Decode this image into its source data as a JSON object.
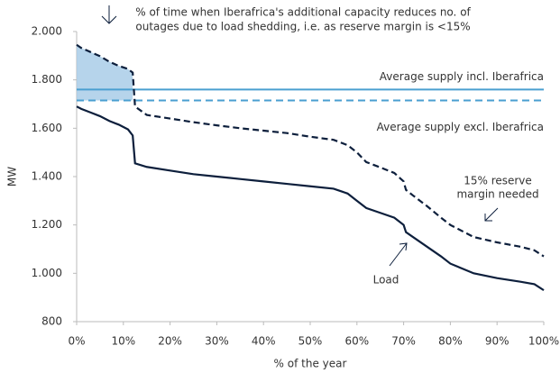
{
  "chart_data": {
    "type": "line",
    "x_label": "% of the year",
    "y_label": "MW",
    "x": [
      0,
      1,
      3,
      5,
      7,
      9,
      11,
      12,
      12.5,
      15,
      20,
      25,
      30,
      35,
      40,
      45,
      50,
      55,
      58,
      60,
      62,
      65,
      68,
      70,
      70.5,
      72,
      75,
      78,
      80,
      85,
      90,
      95,
      98,
      100
    ],
    "series": [
      {
        "name": "Load",
        "color": "#0d1f3c",
        "style": "solid",
        "values": [
          1690,
          1680,
          1665,
          1650,
          1630,
          1615,
          1595,
          1570,
          1455,
          1440,
          1425,
          1410,
          1400,
          1390,
          1380,
          1370,
          1360,
          1350,
          1330,
          1300,
          1270,
          1250,
          1230,
          1200,
          1170,
          1150,
          1110,
          1070,
          1040,
          1000,
          980,
          965,
          955,
          930
        ]
      },
      {
        "name": [
          "15% reserve",
          "margin needed"
        ],
        "color": "#0d1f3c",
        "style": "dashed",
        "values": [
          1945,
          1932,
          1915,
          1898,
          1875,
          1858,
          1845,
          1830,
          1690,
          1655,
          1640,
          1625,
          1612,
          1600,
          1590,
          1580,
          1565,
          1552,
          1530,
          1500,
          1460,
          1438,
          1415,
          1380,
          1345,
          1322,
          1278,
          1230,
          1200,
          1150,
          1128,
          1110,
          1095,
          1070
        ]
      }
    ],
    "reference_lines": [
      {
        "name": "Average supply incl. Iberafrica",
        "value": 1760,
        "color": "#4a9fd0",
        "style": "solid"
      },
      {
        "name": "Average supply excl. Iberafrica",
        "value": 1715,
        "color": "#4a9fd0",
        "style": "dashed"
      }
    ],
    "annotation": [
      "% of time when Iberafrica's additional capacity reduces no. of",
      "outages due to load shedding, i.e. as reserve margin is <15%"
    ],
    "shade_color": "#a9cde8",
    "xlim": [
      0,
      100
    ],
    "ylim": [
      800,
      2000
    ],
    "xticks": [
      {
        "value": 0,
        "label": "0%"
      },
      {
        "value": 10,
        "label": "10%"
      },
      {
        "value": 20,
        "label": "20%"
      },
      {
        "value": 30,
        "label": "30%"
      },
      {
        "value": 40,
        "label": "40%"
      },
      {
        "value": 50,
        "label": "50%"
      },
      {
        "value": 60,
        "label": "60%"
      },
      {
        "value": 70,
        "label": "70%"
      },
      {
        "value": 80,
        "label": "80%"
      },
      {
        "value": 90,
        "label": "90%"
      },
      {
        "value": 100,
        "label": "100%"
      }
    ],
    "yticks": [
      {
        "value": 800,
        "label": "800"
      },
      {
        "value": 1000,
        "label": "1.000"
      },
      {
        "value": 1200,
        "label": "1.200"
      },
      {
        "value": 1400,
        "label": "1.400"
      },
      {
        "value": 1600,
        "label": "1.600"
      },
      {
        "value": 1800,
        "label": "1.800"
      },
      {
        "value": 2000,
        "label": "2.000"
      }
    ]
  }
}
